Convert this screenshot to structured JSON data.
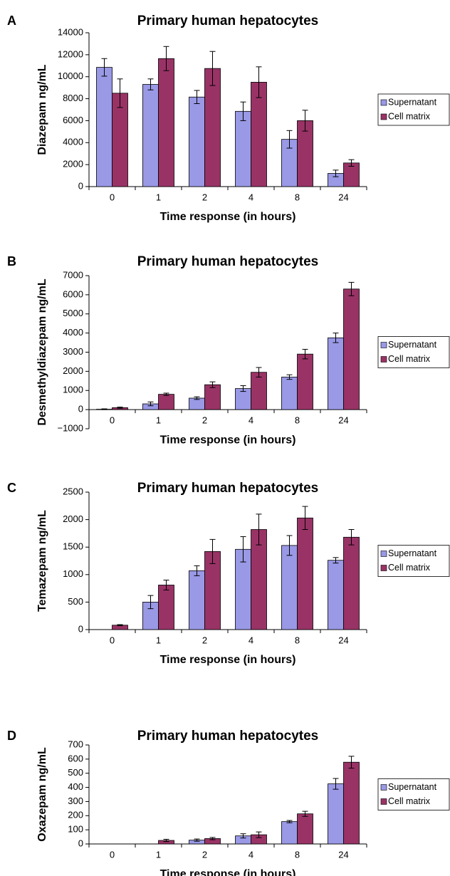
{
  "chart_data": [
    {
      "type": "bar",
      "panel_label": "A",
      "title": "Primary human hepatocytes",
      "x_label": "Time response (in hours)",
      "y_label": "Diazepam ng/mL",
      "categories": [
        "0",
        "1",
        "2",
        "4",
        "8",
        "24"
      ],
      "series": [
        {
          "name": "Supernatant",
          "color": "#9999e6",
          "values": [
            10850,
            9300,
            8150,
            6850,
            4300,
            1200
          ],
          "errors": [
            800,
            500,
            600,
            850,
            800,
            300
          ]
        },
        {
          "name": "Cell matrix",
          "color": "#993366",
          "values": [
            8500,
            11650,
            10750,
            9500,
            6000,
            2150
          ],
          "errors": [
            1300,
            1100,
            1550,
            1400,
            950,
            300
          ]
        }
      ],
      "ylim": [
        0,
        14000
      ],
      "yticks": [
        0,
        2000,
        4000,
        6000,
        8000,
        10000,
        12000,
        14000
      ],
      "legend": "right"
    },
    {
      "type": "bar",
      "panel_label": "B",
      "title": "Primary human hepatocytes",
      "x_label": "Time response (in hours)",
      "y_label": "Desmethyldiazepam ng/mL",
      "categories": [
        "0",
        "1",
        "2",
        "4",
        "8",
        "24"
      ],
      "series": [
        {
          "name": "Supernatant",
          "color": "#9999e6",
          "values": [
            20,
            300,
            600,
            1100,
            1700,
            3750
          ],
          "errors": [
            20,
            100,
            70,
            150,
            120,
            250
          ]
        },
        {
          "name": "Cell matrix",
          "color": "#993366",
          "values": [
            100,
            800,
            1300,
            1950,
            2900,
            6300
          ],
          "errors": [
            30,
            60,
            150,
            250,
            250,
            350
          ]
        }
      ],
      "ylim": [
        -1000,
        7000
      ],
      "yticks": [
        {
          "value": -1000,
          "label": "−1000"
        },
        0,
        1000,
        2000,
        3000,
        4000,
        5000,
        6000,
        7000
      ],
      "legend": "right"
    },
    {
      "type": "bar",
      "panel_label": "C",
      "title": "Primary human hepatocytes",
      "x_label": "Time response (in hours)",
      "y_label": "Temazepam ng/mL",
      "categories": [
        "0",
        "1",
        "2",
        "4",
        "8",
        "24"
      ],
      "series": [
        {
          "name": "Supernatant",
          "color": "#9999e6",
          "values": [
            0,
            500,
            1070,
            1460,
            1530,
            1260
          ],
          "errors": [
            0,
            120,
            90,
            230,
            180,
            50
          ]
        },
        {
          "name": "Cell matrix",
          "color": "#993366",
          "values": [
            80,
            810,
            1420,
            1820,
            2030,
            1680
          ],
          "errors": [
            10,
            90,
            220,
            280,
            210,
            140
          ]
        }
      ],
      "ylim": [
        0,
        2500
      ],
      "yticks": [
        0,
        500,
        1000,
        1500,
        2000,
        2500
      ],
      "legend": "right"
    },
    {
      "type": "bar",
      "panel_label": "D",
      "title": "Primary human hepatocytes",
      "x_label": "Time response (in hours)",
      "y_label": "Oxazepam ng/mL",
      "categories": [
        "0",
        "1",
        "2",
        "4",
        "8",
        "24"
      ],
      "series": [
        {
          "name": "Supernatant",
          "color": "#9999e6",
          "values": [
            0,
            0,
            27,
            57,
            158,
            425
          ],
          "errors": [
            0,
            0,
            8,
            15,
            8,
            38
          ]
        },
        {
          "name": "Cell matrix",
          "color": "#993366",
          "values": [
            0,
            25,
            38,
            65,
            213,
            578
          ],
          "errors": [
            0,
            8,
            8,
            20,
            18,
            42
          ]
        }
      ],
      "ylim": [
        0,
        700
      ],
      "yticks": [
        0,
        100,
        200,
        300,
        400,
        500,
        600,
        700
      ],
      "legend": "right"
    }
  ]
}
